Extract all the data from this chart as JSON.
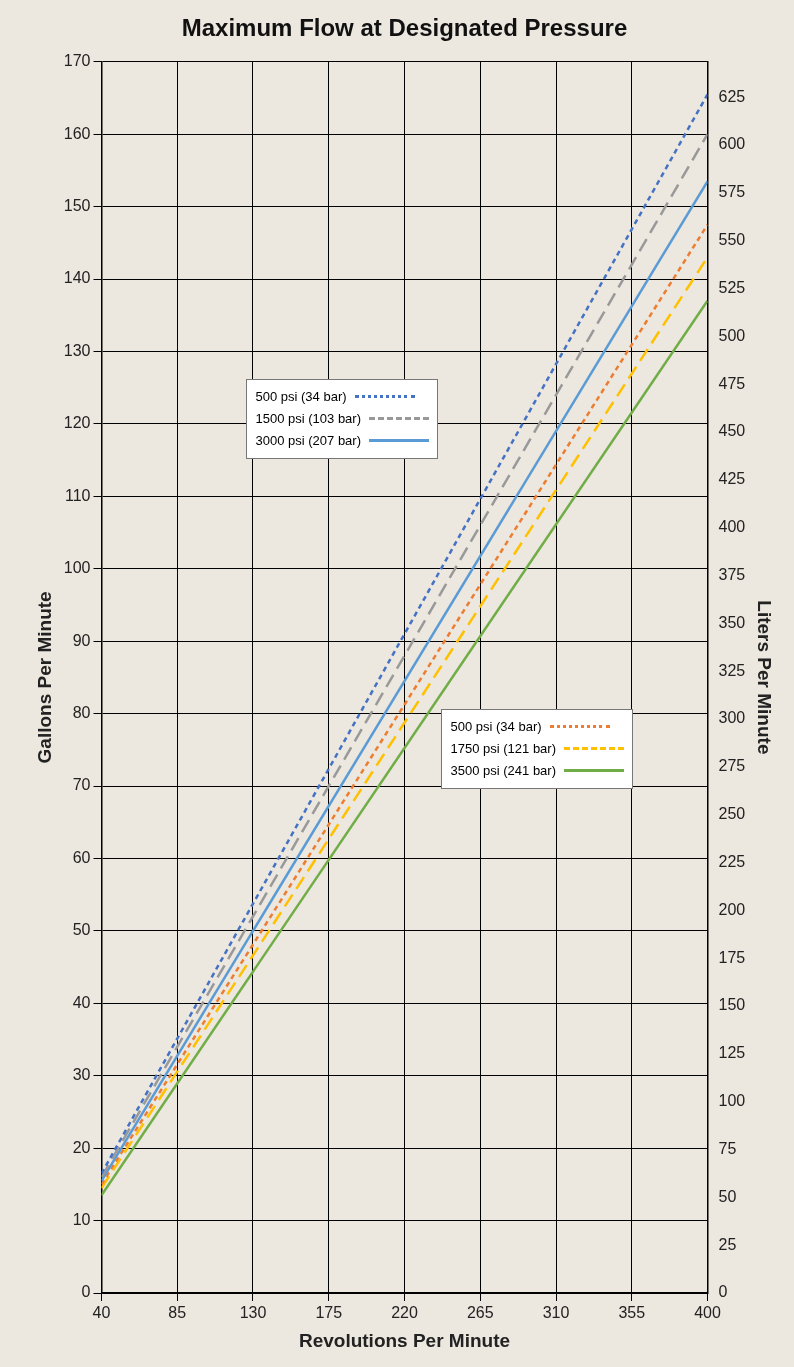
{
  "chart_data": {
    "type": "line",
    "title": "Maximum Flow at Designated Pressure",
    "xlabel": "Revolutions Per Minute",
    "ylabel": "Gallons Per Minute",
    "y2label": "Liters Per Minute",
    "x": [
      40,
      400
    ],
    "series": [
      {
        "name": "500 psi (34 bar)",
        "color": "#4472c4",
        "line_style": "dotted",
        "values": [
          16.5,
          165.5
        ]
      },
      {
        "name": "1500 psi (103 bar)",
        "color": "#999999",
        "line_style": "dashed",
        "values": [
          16,
          160
        ]
      },
      {
        "name": "3000 psi (207 bar)",
        "color": "#5b9bd5",
        "line_style": "solid",
        "values": [
          15.5,
          153.5
        ]
      },
      {
        "name": "500 psi (34 bar)",
        "color": "#ed7d31",
        "line_style": "dotted",
        "values": [
          15,
          147.5
        ]
      },
      {
        "name": "1750 psi (121 bar)",
        "color": "#ffc000",
        "line_style": "dashed",
        "values": [
          14.5,
          143
        ]
      },
      {
        "name": "3500 psi (241 bar)",
        "color": "#70ad47",
        "line_style": "solid",
        "values": [
          13.5,
          137
        ]
      }
    ],
    "xlim": [
      40,
      400
    ],
    "xticks": [
      40,
      85,
      130,
      175,
      220,
      265,
      310,
      355,
      400
    ],
    "ylim": [
      0,
      170
    ],
    "yticks": [
      0,
      10,
      20,
      30,
      40,
      50,
      60,
      70,
      80,
      90,
      100,
      110,
      120,
      130,
      140,
      150,
      160,
      170
    ],
    "y2lim": [
      0,
      643.5
    ],
    "y2ticks": [
      0,
      25,
      50,
      75,
      100,
      125,
      150,
      175,
      200,
      225,
      250,
      275,
      300,
      325,
      350,
      375,
      400,
      425,
      450,
      475,
      500,
      525,
      550,
      575,
      600,
      625
    ],
    "grid": true,
    "legend": "center",
    "marker": "none"
  }
}
